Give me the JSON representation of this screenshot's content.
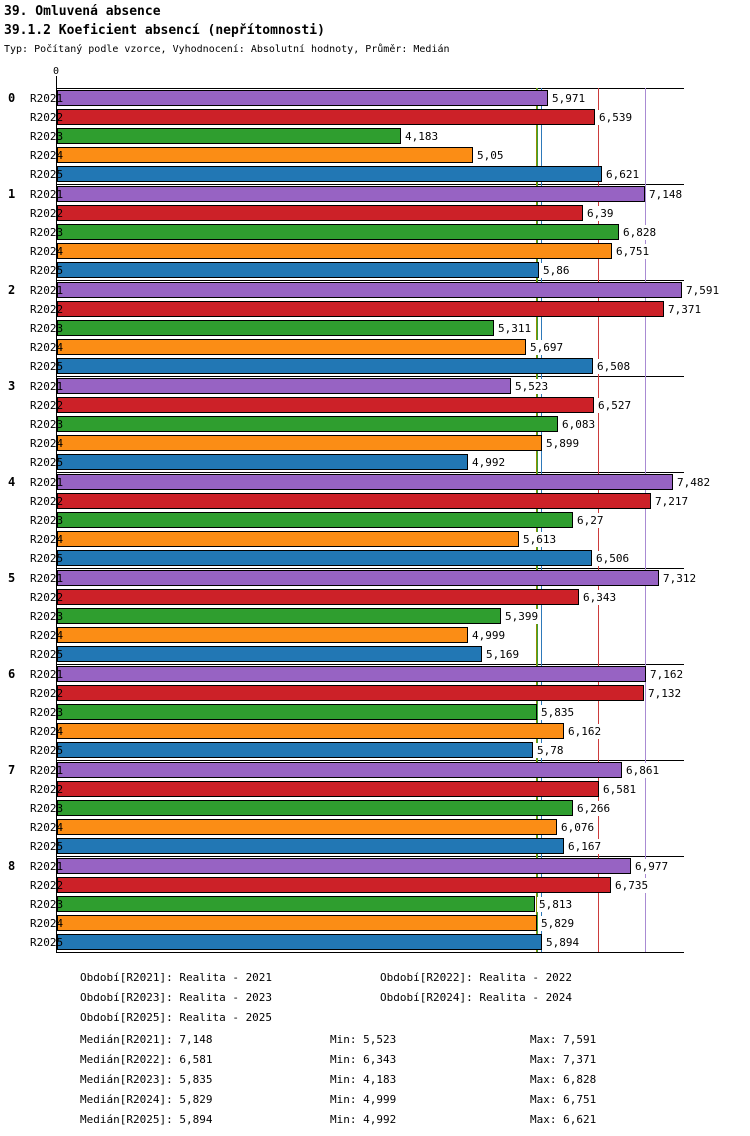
{
  "header": {
    "title": "39. Omluvená absence",
    "subtitle": "39.1.2 Koeficient absencí (nepřítomnosti)",
    "meta": "Typ: Počítaný podle vzorce, Vyhodnocení: Absolutní hodnoty, Průměr: Medián"
  },
  "axis": {
    "zero_label": "0"
  },
  "chart_data": {
    "type": "bar",
    "orientation": "horizontal",
    "title": "39.1.2 Koeficient absencí (nepřítomnosti)",
    "categories": [
      "0",
      "1",
      "2",
      "3",
      "4",
      "5",
      "6",
      "7",
      "8"
    ],
    "series_labels": [
      "R2021",
      "R2022",
      "R2023",
      "R2024",
      "R2025"
    ],
    "series_colors": [
      "#9763C3",
      "#CC2128",
      "#2F9E2F",
      "#FB8D15",
      "#2277B4"
    ],
    "median_line_colors": [
      "#A98BD3",
      "#CC3B3B",
      "#3AA03A",
      "#8F9000",
      "#2E79B9"
    ],
    "xlim": [
      0,
      7.62
    ],
    "grid": false,
    "groups": [
      {
        "category": "0",
        "values": [
          5.971,
          6.539,
          4.183,
          5.05,
          6.621
        ],
        "labels": [
          "5,971",
          "6,539",
          "4,183",
          "5,05",
          "6,621"
        ]
      },
      {
        "category": "1",
        "values": [
          7.148,
          6.39,
          6.828,
          6.751,
          5.86
        ],
        "labels": [
          "7,148",
          "6,39",
          "6,828",
          "6,751",
          "5,86"
        ]
      },
      {
        "category": "2",
        "values": [
          7.591,
          7.371,
          5.311,
          5.697,
          6.508
        ],
        "labels": [
          "7,591",
          "7,371",
          "5,311",
          "5,697",
          "6,508"
        ]
      },
      {
        "category": "3",
        "values": [
          5.523,
          6.527,
          6.083,
          5.899,
          4.992
        ],
        "labels": [
          "5,523",
          "6,527",
          "6,083",
          "5,899",
          "4,992"
        ]
      },
      {
        "category": "4",
        "values": [
          7.482,
          7.217,
          6.27,
          5.613,
          6.506
        ],
        "labels": [
          "7,482",
          "7,217",
          "6,27",
          "5,613",
          "6,506"
        ]
      },
      {
        "category": "5",
        "values": [
          7.312,
          6.343,
          5.399,
          4.999,
          5.169
        ],
        "labels": [
          "7,312",
          "6,343",
          "5,399",
          "4,999",
          "5,169"
        ]
      },
      {
        "category": "6",
        "values": [
          7.162,
          7.132,
          5.835,
          6.162,
          5.78
        ],
        "labels": [
          "7,162",
          "7,132",
          "5,835",
          "6,162",
          "5,78"
        ]
      },
      {
        "category": "7",
        "values": [
          6.861,
          6.581,
          6.266,
          6.076,
          6.167
        ],
        "labels": [
          "6,861",
          "6,581",
          "6,266",
          "6,076",
          "6,167"
        ]
      },
      {
        "category": "8",
        "values": [
          6.977,
          6.735,
          5.813,
          5.829,
          5.894
        ],
        "labels": [
          "6,977",
          "6,735",
          "5,813",
          "5,829",
          "5,894"
        ]
      }
    ],
    "medians": [
      {
        "series": "R2021",
        "value": 7.148
      },
      {
        "series": "R2022",
        "value": 6.581
      },
      {
        "series": "R2023",
        "value": 5.835
      },
      {
        "series": "R2024",
        "value": 5.829
      },
      {
        "series": "R2025",
        "value": 5.894
      }
    ]
  },
  "legend": {
    "col1": [
      "Období[R2021]: Realita - 2021",
      "Období[R2023]: Realita - 2023",
      "Období[R2025]: Realita - 2025"
    ],
    "col2": [
      "Období[R2022]: Realita - 2022",
      "Období[R2024]: Realita - 2024"
    ]
  },
  "stats": [
    {
      "median": "Medián[R2021]: 7,148",
      "min": "Min: 5,523",
      "max": "Max: 7,591"
    },
    {
      "median": "Medián[R2022]: 6,581",
      "min": "Min: 6,343",
      "max": "Max: 7,371"
    },
    {
      "median": "Medián[R2023]: 5,835",
      "min": "Min: 4,183",
      "max": "Max: 6,828"
    },
    {
      "median": "Medián[R2024]: 5,829",
      "min": "Min: 4,999",
      "max": "Max: 6,751"
    },
    {
      "median": "Medián[R2025]: 5,894",
      "min": "Min: 4,992",
      "max": "Max: 6,621"
    }
  ]
}
